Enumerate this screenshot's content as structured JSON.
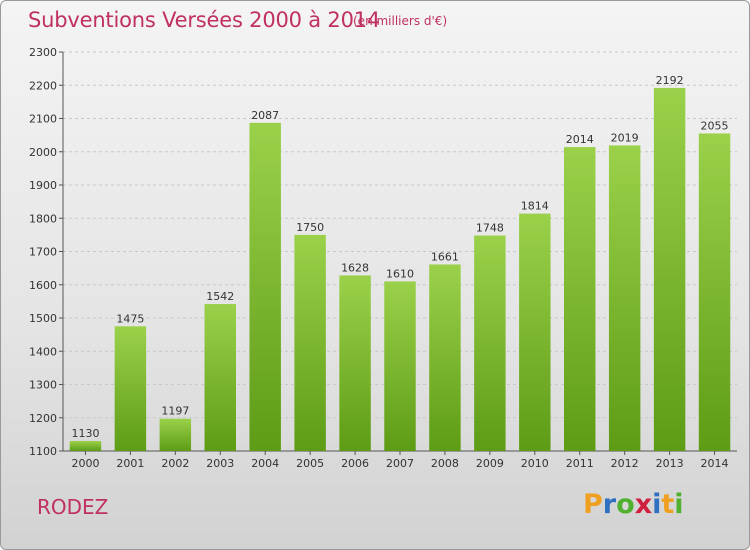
{
  "header": {
    "title": "Subventions Versées 2000 à 2014",
    "subtitle": "(en milliers d'€)"
  },
  "footer": {
    "city": "RODEZ",
    "logo": {
      "letters": [
        "P",
        "r",
        "o",
        "x",
        "i",
        "t",
        "i"
      ],
      "colors": [
        "#f0a020",
        "#3070c0",
        "#50b030",
        "#d02040",
        "#3070c0",
        "#f0a020",
        "#50b030"
      ]
    }
  },
  "colors": {
    "accent": "#c03060",
    "bar_light": "#9bd14a",
    "bar_dark": "#5e9c16"
  },
  "chart_data": {
    "type": "bar",
    "categories": [
      "2000",
      "2001",
      "2002",
      "2003",
      "2004",
      "2005",
      "2006",
      "2007",
      "2008",
      "2009",
      "2010",
      "2011",
      "2012",
      "2013",
      "2014"
    ],
    "values": [
      1130,
      1475,
      1197,
      1542,
      2087,
      1750,
      1628,
      1610,
      1661,
      1748,
      1814,
      2014,
      2019,
      2192,
      2055
    ],
    "ylim": [
      1100,
      2300
    ],
    "yticks": [
      1100,
      1200,
      1300,
      1400,
      1500,
      1600,
      1700,
      1800,
      1900,
      2000,
      2100,
      2200,
      2300
    ],
    "grid": true,
    "data_labels": true
  }
}
